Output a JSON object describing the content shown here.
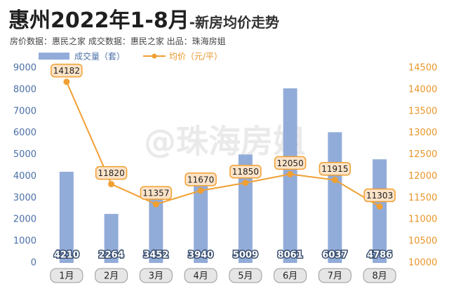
{
  "chart_data": {
    "type": "bar",
    "title": "惠州2022年1-8月",
    "subtitle": "-新房均价走势",
    "source": "房价数据：惠民之家 成交数据：惠民之家 出品：珠海房姐",
    "watermark": "@珠海房姐",
    "categories": [
      "1月",
      "2月",
      "3月",
      "4月",
      "5月",
      "6月",
      "7月",
      "8月"
    ],
    "series": [
      {
        "name": "成交量（套）",
        "type": "bar",
        "color": "#92acd9",
        "values": [
          4210,
          2264,
          3452,
          3940,
          5009,
          8061,
          6037,
          4786
        ]
      },
      {
        "name": "均价（元/平）",
        "type": "line",
        "axis": "y2",
        "color": "#f0a033",
        "values": [
          14182,
          11820,
          11357,
          11670,
          11850,
          12050,
          11915,
          11303
        ]
      }
    ],
    "ylim": [
      0,
      9000
    ],
    "yticks": [
      0,
      1000,
      2000,
      3000,
      4000,
      5000,
      6000,
      7000,
      8000,
      9000
    ],
    "y2lim": [
      10000,
      14500
    ],
    "y2ticks": [
      10000,
      10500,
      11000,
      11500,
      12000,
      12500,
      13000,
      13500,
      14000,
      14500
    ],
    "grid": false
  }
}
